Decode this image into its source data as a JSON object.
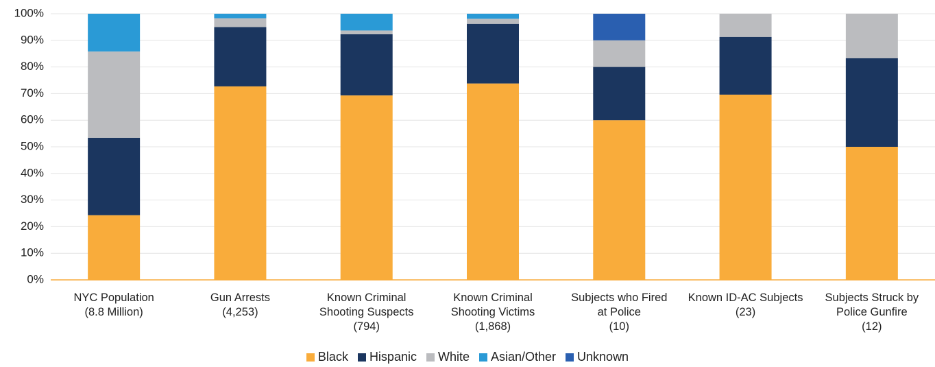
{
  "chart_data": {
    "type": "stacked_bar",
    "categories": [
      "NYC Population\n(8.8 Million)",
      "Gun Arrests\n(4,253)",
      "Known Criminal\nShooting Suspects\n(794)",
      "Known Criminal\nShooting Victims\n(1,868)",
      "Subjects who Fired\nat Police\n(10)",
      "Known ID-AC Subjects\n(23)",
      "Subjects Struck by\nPolice Gunfire\n(12)"
    ],
    "series": [
      {
        "name": "Black",
        "color": "#f9ac3b",
        "values": [
          24.3,
          72.7,
          69.3,
          73.8,
          60,
          69.6,
          50
        ]
      },
      {
        "name": "Hispanic",
        "color": "#1b365f",
        "values": [
          29.1,
          22.3,
          23.0,
          22.4,
          20,
          21.7,
          33.3
        ]
      },
      {
        "name": "White",
        "color": "#bbbcbf",
        "values": [
          32.4,
          3.3,
          1.4,
          1.9,
          10,
          8.7,
          16.7
        ]
      },
      {
        "name": "Asian/Other",
        "color": "#2a9ad6",
        "values": [
          14.2,
          1.7,
          6.3,
          1.9,
          0,
          0,
          0
        ]
      },
      {
        "name": "Unknown",
        "color": "#2a5fb0",
        "values": [
          0,
          0,
          0,
          0,
          10,
          0,
          0
        ]
      }
    ],
    "ylim": [
      0,
      100
    ],
    "yticks": [
      {
        "value": 0,
        "label": "0%"
      },
      {
        "value": 10,
        "label": "10%"
      },
      {
        "value": 20,
        "label": "20%"
      },
      {
        "value": 30,
        "label": "30%"
      },
      {
        "value": 40,
        "label": "40%"
      },
      {
        "value": 50,
        "label": "50%"
      },
      {
        "value": 60,
        "label": "60%"
      },
      {
        "value": 70,
        "label": "70%"
      },
      {
        "value": 80,
        "label": "80%"
      },
      {
        "value": 90,
        "label": "90%"
      },
      {
        "value": 100,
        "label": "100%"
      }
    ],
    "grid": true,
    "axis_color": "#f9ac3b"
  }
}
